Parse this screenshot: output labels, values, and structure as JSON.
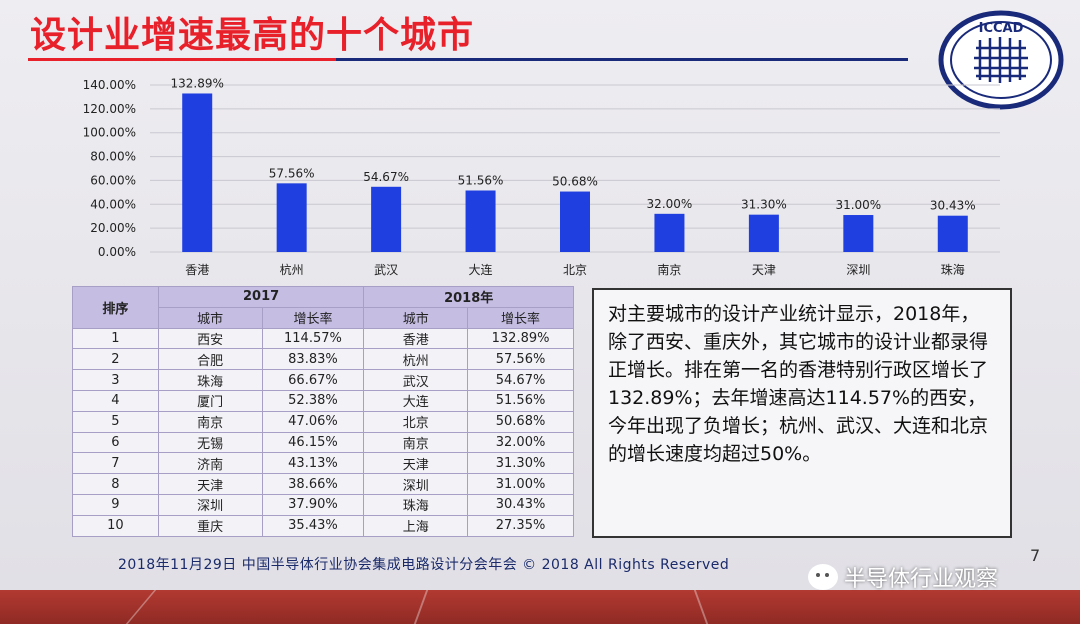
{
  "slide": {
    "title": "设计业增速最高的十个城市",
    "footer": "2018年11月29日  中国半导体行业协会集成电路设计分会年会 © 2018 All Rights Reserved",
    "page_number": "7",
    "logo_text": "ICCAD",
    "watermark": "半导体行业观察",
    "colors": {
      "title": "#e8202a",
      "bar": "#1f3fe0",
      "table_header": "#c6bde3"
    }
  },
  "chart_data": {
    "type": "bar",
    "categories": [
      "香港",
      "杭州",
      "武汉",
      "大连",
      "北京",
      "南京",
      "天津",
      "深圳",
      "珠海"
    ],
    "values": [
      132.89,
      57.56,
      54.67,
      51.56,
      50.68,
      32.0,
      31.3,
      31.0,
      30.43
    ],
    "data_labels": [
      "132.89%",
      "57.56%",
      "54.67%",
      "51.56%",
      "50.68%",
      "32.00%",
      "31.30%",
      "31.00%",
      "30.43%"
    ],
    "yticks": [
      "0.00%",
      "20.00%",
      "40.00%",
      "60.00%",
      "80.00%",
      "100.00%",
      "120.00%",
      "140.00%"
    ],
    "ylim": [
      0,
      140
    ],
    "grid": true,
    "title": "",
    "xlabel": "",
    "ylabel": ""
  },
  "table": {
    "rank_header": "排序",
    "year_2017": "2017",
    "year_2018": "2018年",
    "city_header": "城市",
    "growth_header": "增长率",
    "rows": [
      {
        "rank": "1",
        "city2017": "西安",
        "rate2017": "114.57%",
        "city2018": "香港",
        "rate2018": "132.89%"
      },
      {
        "rank": "2",
        "city2017": "合肥",
        "rate2017": "83.83%",
        "city2018": "杭州",
        "rate2018": "57.56%"
      },
      {
        "rank": "3",
        "city2017": "珠海",
        "rate2017": "66.67%",
        "city2018": "武汉",
        "rate2018": "54.67%"
      },
      {
        "rank": "4",
        "city2017": "厦门",
        "rate2017": "52.38%",
        "city2018": "大连",
        "rate2018": "51.56%"
      },
      {
        "rank": "5",
        "city2017": "南京",
        "rate2017": "47.06%",
        "city2018": "北京",
        "rate2018": "50.68%"
      },
      {
        "rank": "6",
        "city2017": "无锡",
        "rate2017": "46.15%",
        "city2018": "南京",
        "rate2018": "32.00%"
      },
      {
        "rank": "7",
        "city2017": "济南",
        "rate2017": "43.13%",
        "city2018": "天津",
        "rate2018": "31.30%"
      },
      {
        "rank": "8",
        "city2017": "天津",
        "rate2017": "38.66%",
        "city2018": "深圳",
        "rate2018": "31.00%"
      },
      {
        "rank": "9",
        "city2017": "深圳",
        "rate2017": "37.90%",
        "city2018": "珠海",
        "rate2018": "30.43%"
      },
      {
        "rank": "10",
        "city2017": "重庆",
        "rate2017": "35.43%",
        "city2018": "上海",
        "rate2018": "27.35%"
      }
    ]
  },
  "summary_text": "对主要城市的设计产业统计显示，2018年，除了西安、重庆外，其它城市的设计业都录得正增长。排在第一名的香港特别行政区增长了132.89%；去年增速高达114.57%的西安，今年出现了负增长；杭州、武汉、大连和北京的增长速度均超过50%。"
}
